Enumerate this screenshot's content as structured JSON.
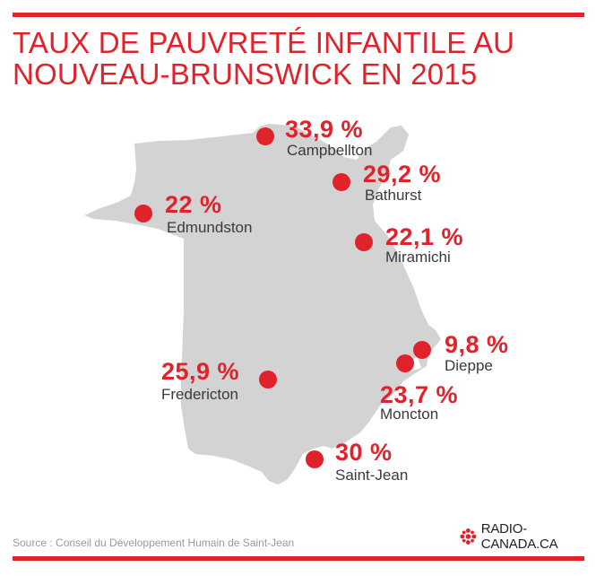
{
  "title": {
    "line1": "TAUX DE PAUVRETÉ INFANTILE AU",
    "line2": "NOUVEAU-BRUNSWICK EN 2015"
  },
  "colors": {
    "accent": "#e0232b",
    "province": "#d3d3d3",
    "label": "#3a3a3a"
  },
  "cities": [
    {
      "name": "Campbellton",
      "value": "33,9 %"
    },
    {
      "name": "Bathurst",
      "value": "29,2 %"
    },
    {
      "name": "Edmundston",
      "value": "22 %"
    },
    {
      "name": "Miramichi",
      "value": "22,1 %"
    },
    {
      "name": "Dieppe",
      "value": "9,8 %"
    },
    {
      "name": "Moncton",
      "value": "23,7 %"
    },
    {
      "name": "Fredericton",
      "value": "25,9 %"
    },
    {
      "name": "Saint-Jean",
      "value": "30 %"
    }
  ],
  "source": "Source : Conseil du Développement Humain de Saint-Jean",
  "logo": {
    "text": "RADIO-CANADA.CA",
    "icon": "cbc-gem-icon"
  }
}
